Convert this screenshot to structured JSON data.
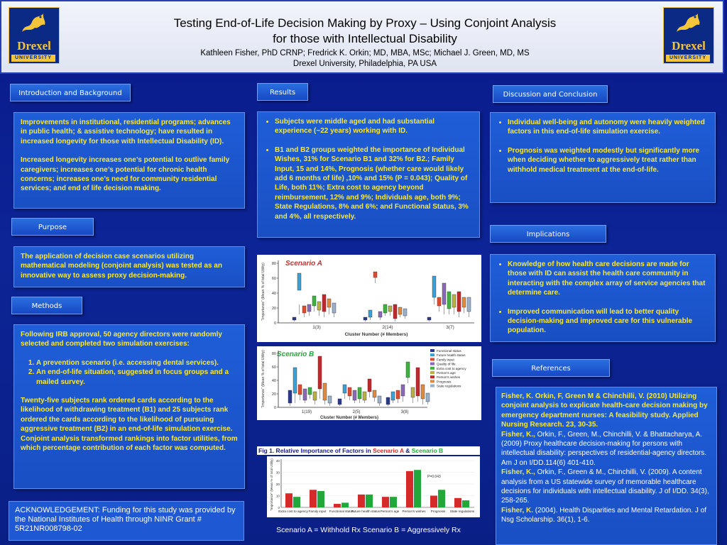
{
  "header": {
    "title_line1": "Testing End-of-Life Decision Making by Proxy – Using Conjoint Analysis",
    "title_line2": "for those with Intellectual Disability",
    "authors": "Kathleen Fisher, PhD CRNP; Fredrick K. Orkin; MD, MBA, MSc; Michael J. Green, MD, MS",
    "affiliation": "Drexel University, Philadelphia, PA  USA",
    "logo_word": "Drexel",
    "logo_sub": "UNIVERSITY"
  },
  "intro": {
    "label": "Introduction and Background",
    "p1": "Improvements in institutional, residential programs; advances in public health; & assistive technology; have resulted in increased longevity for those with Intellectual Disability (ID).",
    "p2": "Increased longevity increases one’s potential to outlive family caregivers; increases one’s potential for chronic health concerns; increases one’s need for community residential services; and end of life decision making."
  },
  "purpose": {
    "label": "Purpose",
    "text": "The application of decision case scenarios utilizing mathematical modeling (conjoint analysis) was tested as an innovative way to assess proxy decision-making."
  },
  "methods": {
    "label": "Methods",
    "p1": "Following IRB approval, 50 agency directors were randomly selected and completed two simulation exercises:",
    "items": [
      "A prevention scenario (i.e. accessing dental services).",
      "An end-of-life situation, suggested in focus groups and a mailed survey."
    ],
    "p2": "Twenty-five subjects rank ordered cards according to the likelihood of withdrawing treatment (B1) and 25 subjects rank ordered the cards according to the likelihood of pursuing aggressive treatment (B2) in an end-of-life simulation exercise.  Conjoint analysis transformed rankings into factor utilities, from which percentage contribution of each factor was computed."
  },
  "ack": {
    "text": "ACKNOWLEDGEMENT: Funding for this study was provided by the National Institutes of Health through NINR Grant # 5R21NR008798-02"
  },
  "results": {
    "label": "Results",
    "b1": "Subjects were middle aged and had substantial experience (~22 years) working with ID.",
    "b2": "B1 and B2 groups weighted the importance of Individual Wishes, 31% for Scenario B1 and 32% for B2.; Family Input, 15 and 14%, Prognosis (whether care would likely add 6 months of life) ,10% and 15% (P = 0.043); Quality of Life, both 11%; Extra cost to agency beyond reimbursement, 12% and 9%; Individuals age, both 9%; State Regulations, 8% and 6%; and Functional Status, 3% and 4%, all respectively."
  },
  "figures": {
    "scenario_a_label": "Scenario A",
    "scenario_b_label": "Scenario B",
    "xaxis_label": "Cluster Number (# Members)",
    "yaxis_label": "\"Importance\" (Mean % of total Utility)",
    "a_groups": [
      "1(3)",
      "2(14)",
      "3(7)"
    ],
    "b_groups": [
      "1(19)",
      "2(5)",
      "3(8)"
    ],
    "a_yticks": [
      "0",
      "20",
      "40",
      "60",
      "80"
    ],
    "b_yticks": [
      "0",
      "20",
      "40",
      "60",
      "80"
    ],
    "legend": [
      "Functional status",
      "Future health status",
      "Family input",
      "Quality of life",
      "Extra cost to agency",
      "Person's age",
      "Person's wishes",
      "Prognosis",
      "State regulations"
    ],
    "legend_colors": [
      "#2a3a8a",
      "#3aa0d8",
      "#e04a30",
      "#8a6ab8",
      "#40b040",
      "#b8b040",
      "#c0282a",
      "#e08a40",
      "#9ab0c8"
    ],
    "fig1_prefix": "Fig 1. Relative Importance of Factors in ",
    "fig1_a": "Scenario A",
    "fig1_and": " & ",
    "fig1_b": "Scenario B",
    "scenario_legend": "Scenario A = Withhold Rx     Scenario B = Aggressively Rx"
  },
  "chart_data": {
    "type": "bar",
    "categories": [
      "Extra cost to agency",
      "Family input",
      "Functional status",
      "Future health status",
      "Person's age",
      "Person's wishes",
      "Prognosis",
      "State regulations"
    ],
    "series": [
      {
        "values": [
          12,
          15,
          3,
          11,
          9,
          31,
          10,
          8
        ],
        "color": "#d42a2a"
      },
      {
        "values": [
          9,
          14,
          4,
          11,
          9,
          32,
          15,
          6
        ],
        "color": "#22a83a"
      }
    ],
    "ylim": [
      0,
      40
    ],
    "yticks": [
      "0",
      "10",
      "20",
      "30",
      "40"
    ],
    "annotation": "P=0.043",
    "ylabel": "\"Importance\" (Mean % of total Utility)"
  },
  "discussion": {
    "label": "Discussion and Conclusion",
    "b1": "Individual well-being and autonomy were heavily weighted factors in this end-of-life simulation exercise.",
    "b2": "Prognosis was weighted modestly but significantly more when deciding whether to aggressively treat rather than withhold medical treatment at the end-of-life."
  },
  "implications": {
    "label": "Implications",
    "b1": "Knowledge of how health care decisions are made for those with ID can assist the health care community in interacting with the complex array of service agencies that determine care.",
    "b2": "Improved communication will lead to better quality decision-making and improved care for this vulnerable population."
  },
  "references": {
    "label": "References",
    "r1": "Fisher, K. Orkin, F, Green M & Chinchilli, V. (2010) Utilizing conjoint analysis to explicate health-care decision making by emergency department nurses: A feasibility study. Applied Nursing Research. 23, 30-35.",
    "r2_author": "Fisher, K.,",
    "r2_rest": " Orkin, F., Green, M., Chinchilli, V. & Bhattacharya, A. (2009) Proxy healthcare decision-making for persons with intellectual disability: perspectives of residential-agency directors.  Am J on I/DD.114(6) 401-410.",
    "r3_author": "Fisher, K.,",
    "r3_rest": " Orkin, F., Green & M., Chinchilli, V. (2009). A content analysis from a US statewide survey of memorable healthcare decisions for individuals with intellectual disability. J of I/DD. 34(3), 258-265.",
    "r4_author": "Fisher, K.",
    "r4_rest": " (2004). Health Disparities and Mental Retardation. J of Nsg Scholarship. 36(1), 1-6."
  }
}
